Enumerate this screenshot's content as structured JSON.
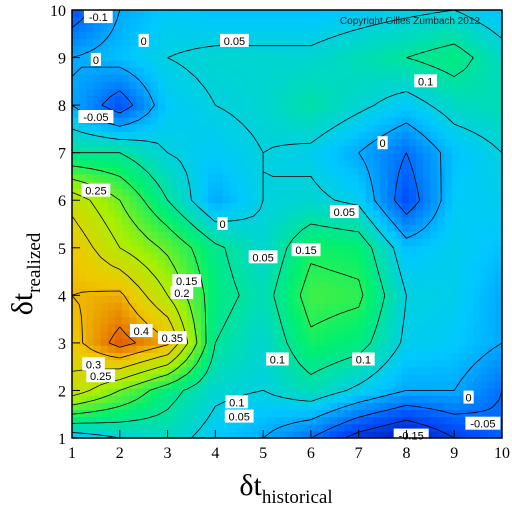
{
  "chart_data": {
    "type": "heatmap",
    "copyright": "Copyright Gilles Zumbach 2012",
    "xlabel": {
      "symbol": "δt",
      "subscript": "historical"
    },
    "ylabel": {
      "symbol": "δt",
      "subscript": "realized"
    },
    "xlim": [
      1,
      10
    ],
    "ylim": [
      1,
      10
    ],
    "xticks": [
      "1",
      "2",
      "3",
      "4",
      "5",
      "6",
      "7",
      "8",
      "9",
      "10"
    ],
    "yticks": [
      "1",
      "2",
      "3",
      "4",
      "5",
      "6",
      "7",
      "8",
      "9",
      "10"
    ],
    "x": [
      1,
      2,
      3,
      4,
      5,
      6,
      7,
      8,
      9,
      10
    ],
    "y": [
      1,
      2,
      3,
      4,
      5,
      6,
      7,
      8,
      9,
      10
    ],
    "z": [
      [
        0.02,
        0.05,
        0.07,
        0.03,
        0.0,
        -0.05,
        -0.12,
        -0.16,
        -0.1,
        -0.06
      ],
      [
        0.28,
        0.2,
        0.12,
        0.06,
        0.05,
        0.08,
        0.04,
        0.0,
        0.0,
        -0.05
      ],
      [
        0.33,
        0.42,
        0.36,
        0.1,
        0.06,
        0.14,
        0.12,
        0.04,
        0.03,
        0.0
      ],
      [
        0.35,
        0.36,
        0.25,
        0.12,
        0.08,
        0.17,
        0.16,
        0.05,
        0.04,
        0.0
      ],
      [
        0.34,
        0.25,
        0.19,
        0.11,
        0.06,
        0.14,
        0.13,
        0.02,
        0.04,
        0.02
      ],
      [
        0.28,
        0.2,
        0.1,
        0.0,
        0.05,
        0.06,
        0.04,
        -0.08,
        0.03,
        0.04
      ],
      [
        0.1,
        0.1,
        0.05,
        0.03,
        0.05,
        0.04,
        0.0,
        -0.05,
        0.02,
        0.05
      ],
      [
        0.0,
        -0.08,
        0.03,
        0.05,
        0.06,
        0.09,
        0.06,
        0.03,
        0.07,
        0.08
      ],
      [
        0.0,
        0.02,
        0.05,
        0.06,
        0.06,
        0.06,
        0.08,
        0.1,
        0.12,
        0.07
      ],
      [
        -0.08,
        0.0,
        0.03,
        0.02,
        0.02,
        0.02,
        0.03,
        0.04,
        0.05,
        0.02
      ]
    ],
    "color_scale": [
      "#0010a0",
      "#0050ff",
      "#00c8ff",
      "#00f070",
      "#a8f000",
      "#f0c800",
      "#e04000"
    ],
    "contour_labels": [
      {
        "text": "-0.1",
        "x": 1.55,
        "y": 9.85
      },
      {
        "text": "0",
        "x": 2.5,
        "y": 9.35
      },
      {
        "text": "0.05",
        "x": 4.4,
        "y": 9.35
      },
      {
        "text": "0",
        "x": 1.5,
        "y": 8.95
      },
      {
        "text": "0.1",
        "x": 8.4,
        "y": 8.5
      },
      {
        "text": "-0.05",
        "x": 1.5,
        "y": 7.75
      },
      {
        "text": "0",
        "x": 7.5,
        "y": 7.2
      },
      {
        "text": "0.25",
        "x": 1.5,
        "y": 6.2
      },
      {
        "text": "0.05",
        "x": 6.7,
        "y": 5.75
      },
      {
        "text": "0",
        "x": 4.15,
        "y": 5.5
      },
      {
        "text": "0.15",
        "x": 5.9,
        "y": 4.95
      },
      {
        "text": "0.05",
        "x": 5.0,
        "y": 4.8
      },
      {
        "text": "0.15",
        "x": 3.4,
        "y": 4.3
      },
      {
        "text": "0.2",
        "x": 3.3,
        "y": 4.05
      },
      {
        "text": "0.4",
        "x": 2.45,
        "y": 3.25
      },
      {
        "text": "0.35",
        "x": 3.1,
        "y": 3.1
      },
      {
        "text": "0.3",
        "x": 1.45,
        "y": 2.55
      },
      {
        "text": "0.25",
        "x": 1.6,
        "y": 2.3
      },
      {
        "text": "0.1",
        "x": 5.3,
        "y": 2.65
      },
      {
        "text": "0.1",
        "x": 7.1,
        "y": 2.65
      },
      {
        "text": "0.1",
        "x": 4.45,
        "y": 1.75
      },
      {
        "text": "0.05",
        "x": 4.5,
        "y": 1.45
      },
      {
        "text": "0",
        "x": 9.3,
        "y": 1.85
      },
      {
        "text": "-0.15",
        "x": 8.1,
        "y": 1.05
      },
      {
        "text": "-0.05",
        "x": 9.6,
        "y": 1.3
      }
    ]
  }
}
